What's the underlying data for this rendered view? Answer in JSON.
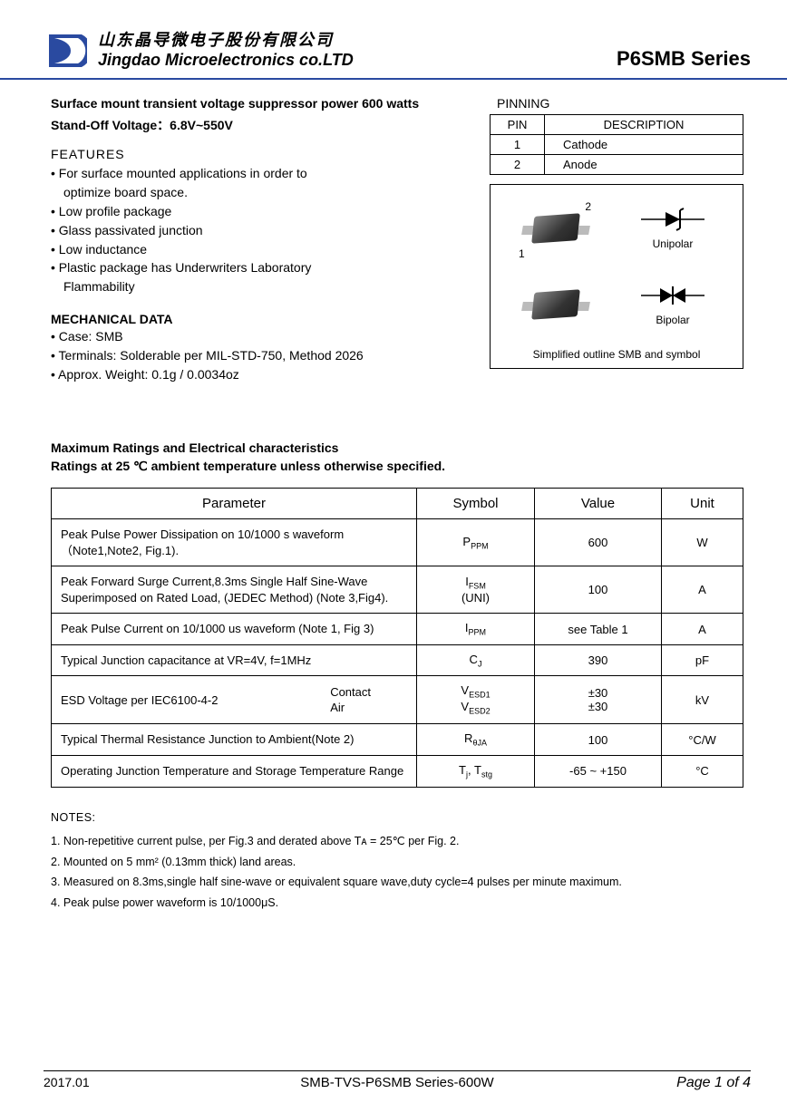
{
  "header": {
    "company_cn": "山东晶导微电子股份有限公司",
    "company_en": "Jingdao Microelectronics co.LTD",
    "series": "P6SMB Series",
    "logo_colors": {
      "outer": "#2a4aa0",
      "inner": "#ffffff"
    }
  },
  "intro": {
    "title": "Surface mount transient  voltage suppressor power 600 watts",
    "subtitle": "Stand-Off Voltage：6.8V~550V"
  },
  "features": {
    "heading": "FEATURES",
    "items": [
      "For surface mounted applications in order to",
      "optimize board space.",
      "Low profile package",
      "Glass passivated junction",
      "Low inductance",
      "Plastic package has Underwriters Laboratory",
      "Flammability"
    ],
    "indent_indices": [
      1,
      6
    ]
  },
  "mechanical": {
    "heading": "MECHANICAL DATA",
    "items": [
      "Case: SMB",
      "Terminals: Solderable per MIL-STD-750, Method 2026",
      "Approx. Weight: 0.1g / 0.0034oz"
    ]
  },
  "pinning": {
    "caption": "PINNING",
    "headers": [
      "PIN",
      "DESCRIPTION"
    ],
    "rows": [
      [
        "1",
        "Cathode"
      ],
      [
        "2",
        "Anode"
      ]
    ]
  },
  "diagram": {
    "lbl_1": "1",
    "lbl_2": "2",
    "unipolar": "Unipolar",
    "bipolar": "Bipolar",
    "caption": "Simplified outline SMB and symbol"
  },
  "ratings_head": {
    "l1": "Maximum Ratings and Electrical characteristics",
    "l2": "Ratings at 25 ℃ ambient temperature unless otherwise specified."
  },
  "ratings_table": {
    "headers": [
      "Parameter",
      "Symbol",
      "Value",
      "Unit"
    ],
    "rows": [
      {
        "param": "Peak Pulse Power Dissipation on 10/1000 s waveform\n（Note1,Note2, Fig.1).",
        "symbol_html": "P<span class='sub'>PPM</span>",
        "value": "600",
        "unit": "W"
      },
      {
        "param": "Peak Forward Surge Current,8.3ms Single Half Sine-Wave\nSuperimposed on Rated Load, (JEDEC Method) (Note 3,Fig4).",
        "symbol_html": "I<span class='sub'>FSM</span><span class='stack'>(UNI)</span>",
        "value": "100",
        "unit": "A"
      },
      {
        "param": "Peak Pulse Current on 10/1000 us waveform (Note 1, Fig 3)",
        "symbol_html": "I<span class='sub'>PPM</span>",
        "value": "see Table 1",
        "unit": "A"
      },
      {
        "param": "Typical Junction capacitance at VR=4V, f=1MHz",
        "symbol_html": "C<span class='sub'>J</span>",
        "value": "390",
        "unit": "pF"
      },
      {
        "param": "ESD Voltage per IEC6100-4-2",
        "param_extra": "Contact\nAir",
        "symbol_html": "V<span class='sub'>ESD1</span><span class='stack'>V<span class='sub'>ESD2</span></span>",
        "value": "±30\n±30",
        "unit": "kV"
      },
      {
        "param": "Typical Thermal Resistance Junction to Ambient(Note 2)",
        "symbol_html": "R<span class='sub'>θJA</span>",
        "value": "100",
        "unit": "°C/W"
      },
      {
        "param": "Operating Junction Temperature and Storage Temperature Range",
        "symbol_html": "T<span class='sub'>j</span>, T<span class='sub'>stg</span>",
        "value": "-65 ~ +150",
        "unit": "°C"
      }
    ]
  },
  "notes": {
    "heading": "NOTES:",
    "items": [
      "1. Non-repetitive current pulse, per Fig.3 and derated above Tᴀ = 25℃  per Fig. 2.",
      "2. Mounted on 5 mm² (0.13mm  thick) land areas.",
      "3. Measured on 8.3ms,single half sine-wave or equivalent square wave,duty cycle=4 pulses per minute maximum.",
      "4. Peak pulse power waveform is 10/1000μS."
    ]
  },
  "footer": {
    "date": "2017.01",
    "doc": "SMB-TVS-P6SMB  Series-600W",
    "page": "Page  1 of 4"
  }
}
